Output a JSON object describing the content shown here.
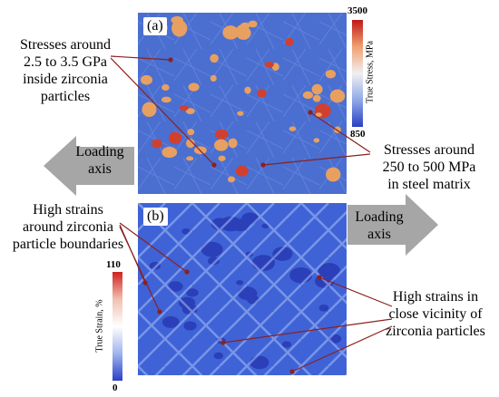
{
  "panel_a": {
    "label": "(a)"
  },
  "panel_b": {
    "label": "(b)"
  },
  "colorbar_stress": {
    "label": "True Stress, MPa",
    "max": "3500",
    "min": "850"
  },
  "colorbar_strain": {
    "label": "True Strain, %",
    "max": "110",
    "min": "0"
  },
  "annotations": {
    "stress_zirconia": [
      "Stresses around",
      "2.5 to 3.5 GPa",
      "inside zirconia",
      "particles"
    ],
    "stress_steel": [
      "Stresses around",
      "250 to 500 MPa",
      "in steel matrix"
    ],
    "strain_boundaries": [
      "High strains",
      "around zirconia",
      "particle boundaries"
    ],
    "strain_vicinity": [
      "High strains in",
      "close vicinity of",
      "zirconia particles"
    ]
  },
  "loading_axis": {
    "left_label": [
      "Loading",
      "axis"
    ],
    "right_label": [
      "Loading",
      "axis"
    ]
  },
  "colors": {
    "matrix_blue": "#4a6fd0",
    "particle_orange": "#e8a060",
    "hot_red": "#d03020",
    "arrow_gray": "#a6a6a6",
    "annot_line": "#8b2020"
  }
}
